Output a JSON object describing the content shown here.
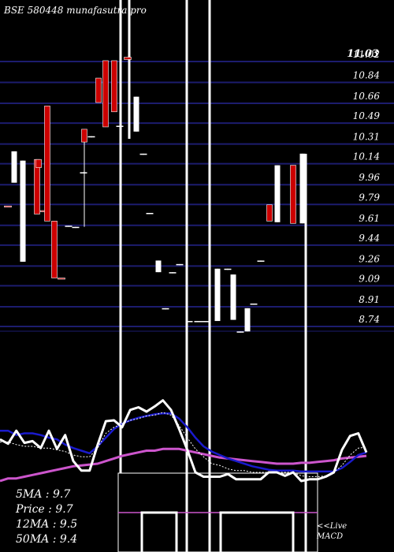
{
  "header": {
    "title": "BSE 580448 munafasutra.pro"
  },
  "colors": {
    "background": "#000000",
    "grid": "#1c1c6e",
    "up": "#ffffff",
    "down": "#cc0000",
    "ma_fast": "#ffffff",
    "ma_mid": "#1a1acc",
    "ma_slow": "#cc55cc",
    "text": "#ffffff"
  },
  "chart_data": {
    "type": "candlestick",
    "ylim": [
      8.6,
      11.15
    ],
    "y_ticks": [
      "11.02",
      "10.84",
      "10.66",
      "10.49",
      "10.31",
      "10.14",
      "9.96",
      "9.79",
      "9.61",
      "9.44",
      "9.26",
      "9.09",
      "8.91",
      "8.74"
    ],
    "y_tick_values": [
      11.02,
      10.84,
      10.66,
      10.49,
      10.31,
      10.14,
      9.96,
      9.79,
      9.61,
      9.44,
      9.26,
      9.09,
      8.91,
      8.74
    ],
    "last_price_label": "11.03",
    "candles": [
      {
        "dir": "up",
        "open": 9.95,
        "close": 10.22,
        "high": 10.22,
        "low": 9.95
      },
      {
        "dir": "down",
        "open": 9.75,
        "close": 9.74,
        "high": 9.75,
        "low": 9.74
      },
      {
        "dir": "up",
        "open": 9.27,
        "close": 10.14,
        "high": 10.14,
        "low": 9.27
      },
      {
        "dir": "down",
        "open": 10.15,
        "close": 9.68,
        "high": 10.15,
        "low": 9.68
      },
      {
        "dir": "down",
        "open": 9.71,
        "close": 9.7,
        "high": 9.71,
        "low": 9.7
      },
      {
        "dir": "down",
        "open": 10.15,
        "close": 10.08,
        "high": 10.15,
        "low": 10.08
      },
      {
        "dir": "down",
        "open": 10.61,
        "close": 9.62,
        "high": 10.61,
        "low": 9.62
      },
      {
        "dir": "down",
        "open": 9.62,
        "close": 9.13,
        "high": 9.62,
        "low": 9.13
      },
      {
        "dir": "down",
        "open": 9.13,
        "close": 9.12,
        "high": 9.13,
        "low": 9.12
      },
      {
        "dir": "up",
        "open": 9.57,
        "close": 9.58,
        "high": 9.58,
        "low": 9.57
      },
      {
        "dir": "up",
        "open": 9.56,
        "close": 9.57,
        "high": 9.57,
        "low": 9.56
      },
      {
        "dir": "up",
        "open": 10.03,
        "close": 10.04,
        "high": 10.04,
        "low": 10.03
      },
      {
        "dir": "down",
        "open": 10.41,
        "close": 10.3,
        "high": 10.41,
        "low": 9.57
      },
      {
        "dir": "up",
        "open": 10.34,
        "close": 10.35,
        "high": 10.35,
        "low": 10.34
      },
      {
        "dir": "down",
        "open": 10.85,
        "close": 10.64,
        "high": 10.85,
        "low": 10.64
      },
      {
        "dir": "down",
        "open": 11.0,
        "close": 10.43,
        "high": 11.0,
        "low": 10.43
      },
      {
        "dir": "down",
        "open": 11.0,
        "close": 10.56,
        "high": 11.0,
        "low": 10.56
      },
      {
        "dir": "up",
        "open": 10.43,
        "close": 10.44,
        "high": 10.44,
        "low": 10.43
      },
      {
        "dir": "down",
        "open": 11.03,
        "close": 11.01,
        "high": 11.03,
        "low": 11.01
      },
      {
        "dir": "up",
        "open": 10.39,
        "close": 10.69,
        "high": 10.69,
        "low": 10.39
      },
      {
        "dir": "up",
        "open": 10.19,
        "close": 10.2,
        "high": 10.2,
        "low": 10.19
      },
      {
        "dir": "up",
        "open": 9.68,
        "close": 9.69,
        "high": 9.69,
        "low": 9.68
      },
      {
        "dir": "up",
        "open": 9.18,
        "close": 9.28,
        "high": 9.28,
        "low": 9.18
      },
      {
        "dir": "up",
        "open": 9.17,
        "close": 9.18,
        "high": 9.18,
        "low": 9.17
      },
      {
        "dir": "up",
        "open": 9.24,
        "close": 9.25,
        "high": 9.25,
        "low": 9.24
      },
      {
        "dir": "up",
        "open": 8.86,
        "close": 8.87,
        "high": 8.87,
        "low": 8.86
      },
      {
        "dir": "up",
        "open": 8.75,
        "close": 8.76,
        "high": 8.76,
        "low": 8.75
      },
      {
        "dir": "up",
        "open": 8.75,
        "close": 8.76,
        "high": 8.76,
        "low": 8.75
      },
      {
        "dir": "up",
        "open": 8.75,
        "close": 8.76,
        "high": 8.76,
        "low": 8.75
      },
      {
        "dir": "up",
        "open": 8.76,
        "close": 9.21,
        "high": 9.21,
        "low": 8.76
      },
      {
        "dir": "up",
        "open": 9.2,
        "close": 9.21,
        "high": 9.21,
        "low": 9.2
      },
      {
        "dir": "up",
        "open": 8.77,
        "close": 9.16,
        "high": 9.16,
        "low": 8.77
      },
      {
        "dir": "up",
        "open": 8.66,
        "close": 8.67,
        "high": 8.67,
        "low": 8.66
      },
      {
        "dir": "up",
        "open": 8.67,
        "close": 8.87,
        "high": 8.87,
        "low": 8.67
      },
      {
        "dir": "up",
        "open": 8.9,
        "close": 8.91,
        "high": 8.91,
        "low": 8.9
      },
      {
        "dir": "up",
        "open": 9.27,
        "close": 9.28,
        "high": 9.28,
        "low": 9.27
      },
      {
        "dir": "down",
        "open": 9.76,
        "close": 9.62,
        "high": 9.76,
        "low": 9.62
      },
      {
        "dir": "up",
        "open": 9.61,
        "close": 10.1,
        "high": 10.1,
        "low": 9.61
      },
      {
        "dir": "down",
        "open": 10.1,
        "close": 9.6,
        "high": 10.1,
        "low": 9.6
      },
      {
        "dir": "up",
        "open": 9.6,
        "close": 10.2,
        "high": 10.2,
        "low": 9.6
      }
    ],
    "indicators": {
      "ma_fast": [
        0.48,
        0.43,
        0.58,
        0.44,
        0.46,
        0.38,
        0.58,
        0.37,
        0.53,
        0.23,
        0.12,
        0.12,
        0.42,
        0.69,
        0.7,
        0.62,
        0.82,
        0.85,
        0.8,
        0.86,
        0.93,
        0.82,
        0.6,
        0.36,
        0.1,
        0.05,
        0.05,
        0.05,
        0.08,
        0.02,
        0.02,
        0.02,
        0.02,
        0.1,
        0.1,
        0.06,
        0.1,
        0.0,
        0.02,
        0.02,
        0.05,
        0.1,
        0.36,
        0.52,
        0.55,
        0.33
      ],
      "ma_mid": [
        0.58,
        0.58,
        0.53,
        0.55,
        0.55,
        0.53,
        0.5,
        0.48,
        0.42,
        0.38,
        0.35,
        0.32,
        0.4,
        0.5,
        0.6,
        0.66,
        0.7,
        0.73,
        0.75,
        0.77,
        0.78,
        0.78,
        0.72,
        0.62,
        0.5,
        0.4,
        0.34,
        0.3,
        0.26,
        0.23,
        0.2,
        0.17,
        0.15,
        0.13,
        0.12,
        0.12,
        0.12,
        0.11,
        0.11,
        0.11,
        0.11,
        0.11,
        0.15,
        0.22,
        0.3,
        0.33
      ],
      "ma_slow": [
        0.0,
        0.03,
        0.03,
        0.05,
        0.07,
        0.09,
        0.11,
        0.13,
        0.15,
        0.17,
        0.18,
        0.19,
        0.2,
        0.23,
        0.26,
        0.29,
        0.31,
        0.33,
        0.35,
        0.35,
        0.37,
        0.37,
        0.37,
        0.35,
        0.33,
        0.31,
        0.29,
        0.27,
        0.26,
        0.25,
        0.24,
        0.23,
        0.22,
        0.21,
        0.2,
        0.2,
        0.2,
        0.21,
        0.21,
        0.22,
        0.23,
        0.24,
        0.26,
        0.27,
        0.28,
        0.29
      ],
      "ma_extra": [
        0.45,
        0.45,
        0.42,
        0.4,
        0.4,
        0.38,
        0.38,
        0.36,
        0.34,
        0.3,
        0.28,
        0.28,
        0.38,
        0.55,
        0.62,
        0.66,
        0.7,
        0.72,
        0.75,
        0.76,
        0.79,
        0.76,
        0.64,
        0.5,
        0.37,
        0.28,
        0.2,
        0.18,
        0.14,
        0.12,
        0.12,
        0.1,
        0.1,
        0.1,
        0.1,
        0.1,
        0.1,
        0.06,
        0.05,
        0.05,
        0.06,
        0.1,
        0.18,
        0.3,
        0.38,
        0.39
      ]
    },
    "macd": {
      "signal_value": 0.5,
      "bars": [
        {
          "dir": "up",
          "value": 0.7
        },
        {
          "dir": "up",
          "value": 0.7
        },
        {
          "dir": "up",
          "value": 0.7
        },
        {
          "dir": "up",
          "value": 0.7
        },
        {
          "dir": "up",
          "value": 0.7
        },
        {
          "dir": "up",
          "value": 0.7
        }
      ]
    }
  },
  "legend": {
    "ma5": {
      "label": "5MA",
      "value": "9.7"
    },
    "price": {
      "label": "Price",
      "value": "9.7"
    },
    "ma12": {
      "label": "12MA",
      "value": "9.5"
    },
    "ma50": {
      "label": "50MA",
      "value": "9.4"
    },
    "sep": " : "
  },
  "macd_label": "<<Live\nMACD"
}
